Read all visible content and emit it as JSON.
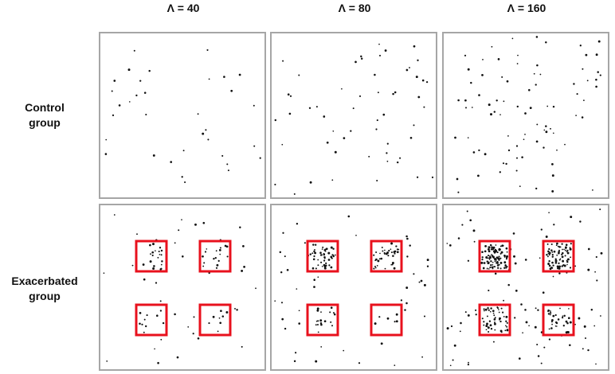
{
  "column_headers": [
    "Λ = 40",
    "Λ = 80",
    "Λ = 160"
  ],
  "row_labels": [
    "Control\ngroup",
    "Exacerbated\ngroup"
  ],
  "panels": [
    {
      "group": "control",
      "lambda": 40,
      "clusters": false
    },
    {
      "group": "control",
      "lambda": 80,
      "clusters": false
    },
    {
      "group": "control",
      "lambda": 160,
      "clusters": false
    },
    {
      "group": "exacerbated",
      "lambda": 40,
      "clusters": true,
      "cluster_density": [
        18,
        14,
        10,
        8
      ]
    },
    {
      "group": "exacerbated",
      "lambda": 80,
      "clusters": true,
      "cluster_density": [
        45,
        35,
        16,
        4
      ]
    },
    {
      "group": "exacerbated",
      "lambda": 160,
      "clusters": true,
      "cluster_density": [
        95,
        70,
        45,
        30
      ]
    }
  ],
  "colors": {
    "frame": "#a6a6a6",
    "cluster_box": "#e8111d",
    "point": "#111111"
  }
}
